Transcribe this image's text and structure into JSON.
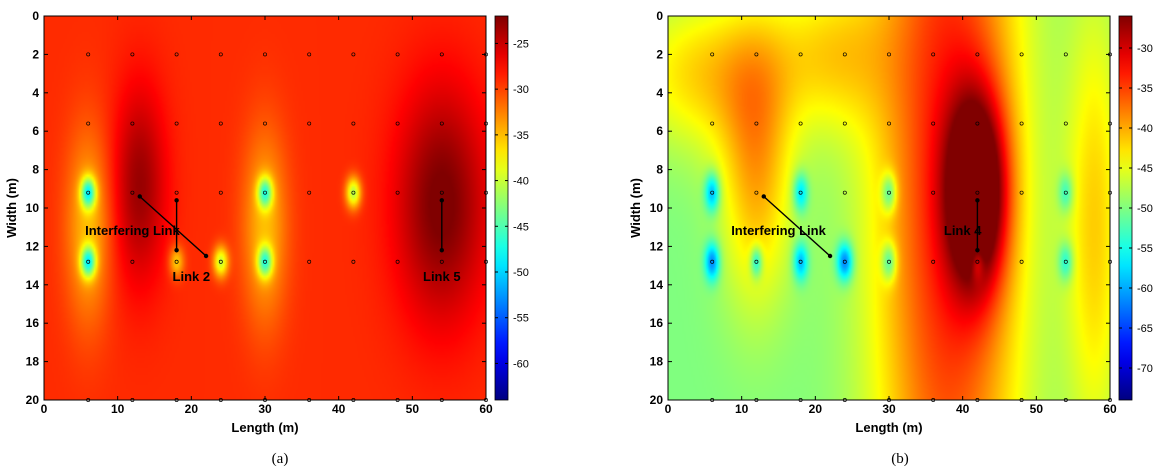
{
  "chart_data": [
    {
      "type": "heatmap",
      "panel_label": "(a)",
      "xlabel": "Length (m)",
      "ylabel": "Width (m)",
      "xlim": [
        0,
        60
      ],
      "ylim": [
        0,
        20
      ],
      "y_axis_inverted": true,
      "x_ticks": [
        0,
        10,
        20,
        30,
        40,
        50,
        60
      ],
      "y_ticks": [
        0,
        2,
        4,
        6,
        8,
        10,
        12,
        14,
        16,
        18,
        20
      ],
      "colorbar": {
        "colormap": "jet",
        "range": [
          -64,
          -22
        ],
        "ticks": [
          -25,
          -30,
          -35,
          -40,
          -45,
          -50,
          -55,
          -60
        ]
      },
      "base_value": -29,
      "sensor_grid": {
        "x": [
          6,
          12,
          18,
          24,
          30,
          36,
          42,
          48,
          54,
          60
        ],
        "y": [
          2,
          5.6,
          9.2,
          12.8,
          20
        ]
      },
      "field_features": [
        {
          "x": 13,
          "y": 8.8,
          "value": -23,
          "spread_x": 3.5,
          "spread_y": 5
        },
        {
          "x": 54,
          "y": 9.8,
          "value": -21.5,
          "spread_x": 6,
          "spread_y": 6
        },
        {
          "x": 6,
          "y": 9.2,
          "value": -44,
          "spread_x": 1,
          "spread_y": 0.8
        },
        {
          "x": 6,
          "y": 12.8,
          "value": -44,
          "spread_x": 1,
          "spread_y": 0.8
        },
        {
          "x": 30,
          "y": 9.2,
          "value": -42,
          "spread_x": 1,
          "spread_y": 0.8
        },
        {
          "x": 30,
          "y": 12.8,
          "value": -42,
          "spread_x": 1,
          "spread_y": 0.8
        },
        {
          "x": 42,
          "y": 9.2,
          "value": -41,
          "spread_x": 1,
          "spread_y": 0.8
        },
        {
          "x": 24,
          "y": 12.8,
          "value": -40,
          "spread_x": 1,
          "spread_y": 0.8
        },
        {
          "x": 18,
          "y": 12.8,
          "value": -36,
          "spread_x": 1,
          "spread_y": 0.8
        },
        {
          "x": 6,
          "y": 11,
          "value": -35,
          "spread_x": 3,
          "spread_y": 5
        },
        {
          "x": 30,
          "y": 11,
          "value": -35,
          "spread_x": 3,
          "spread_y": 5
        }
      ],
      "links": [
        {
          "label": "Interfering Link",
          "from": [
            13,
            9.4
          ],
          "to": [
            22,
            12.5
          ],
          "label_at": [
            12,
            11.2
          ],
          "label_anchor": "middle"
        },
        {
          "label": "Link 2",
          "from": [
            18,
            9.6
          ],
          "to": [
            18,
            12.2
          ],
          "label_at": [
            20,
            13.6
          ],
          "label_anchor": "middle"
        },
        {
          "label": "Link 5",
          "from": [
            54,
            9.6
          ],
          "to": [
            54,
            12.2
          ],
          "label_at": [
            54,
            13.6
          ],
          "label_anchor": "middle"
        }
      ]
    },
    {
      "type": "heatmap",
      "panel_label": "(b)",
      "xlabel": "Length (m)",
      "ylabel": "Width (m)",
      "xlim": [
        0,
        60
      ],
      "ylim": [
        0,
        20
      ],
      "y_axis_inverted": true,
      "x_ticks": [
        0,
        10,
        20,
        30,
        40,
        50,
        60
      ],
      "y_ticks": [
        0,
        2,
        4,
        6,
        8,
        10,
        12,
        14,
        16,
        18,
        20
      ],
      "colorbar": {
        "colormap": "jet",
        "range": [
          -74,
          -26
        ],
        "ticks": [
          -30,
          -35,
          -40,
          -45,
          -50,
          -55,
          -60,
          -65,
          -70
        ]
      },
      "base_value": -50,
      "sensor_grid": {
        "x": [
          6,
          12,
          18,
          24,
          30,
          36,
          42,
          48,
          54,
          60
        ],
        "y": [
          2,
          5.6,
          9.2,
          12.8,
          20
        ]
      },
      "field_features": [
        {
          "x": 38,
          "y": 8,
          "value": -33,
          "spread_x": 10,
          "spread_y": 28
        },
        {
          "x": 42,
          "y": 9.2,
          "value": -27,
          "spread_x": 4,
          "spread_y": 5
        },
        {
          "x": 12,
          "y": 8,
          "value": -40,
          "spread_x": 5,
          "spread_y": 7
        },
        {
          "x": 5,
          "y": 3,
          "value": -42,
          "spread_x": 10,
          "spread_y": 4
        },
        {
          "x": 22,
          "y": 2,
          "value": -43,
          "spread_x": 8,
          "spread_y": 4
        },
        {
          "x": 58,
          "y": 11,
          "value": -42,
          "spread_x": 4,
          "spread_y": 12
        },
        {
          "x": 6,
          "y": 9.2,
          "value": -62,
          "spread_x": 1,
          "spread_y": 1
        },
        {
          "x": 6,
          "y": 12.8,
          "value": -63,
          "spread_x": 1,
          "spread_y": 1
        },
        {
          "x": 12,
          "y": 12.8,
          "value": -60,
          "spread_x": 0.8,
          "spread_y": 0.8
        },
        {
          "x": 18,
          "y": 9.2,
          "value": -60,
          "spread_x": 1,
          "spread_y": 1
        },
        {
          "x": 18,
          "y": 12.8,
          "value": -61,
          "spread_x": 1,
          "spread_y": 1
        },
        {
          "x": 24,
          "y": 12.8,
          "value": -64,
          "spread_x": 1.1,
          "spread_y": 1
        },
        {
          "x": 30,
          "y": 9.2,
          "value": -60,
          "spread_x": 1,
          "spread_y": 1
        },
        {
          "x": 30,
          "y": 12.8,
          "value": -60,
          "spread_x": 1,
          "spread_y": 1
        },
        {
          "x": 42,
          "y": 12.8,
          "value": -57,
          "spread_x": 0.9,
          "spread_y": 1
        },
        {
          "x": 54,
          "y": 9.2,
          "value": -57,
          "spread_x": 1,
          "spread_y": 1
        },
        {
          "x": 54,
          "y": 12.8,
          "value": -58,
          "spread_x": 1,
          "spread_y": 1
        }
      ],
      "links": [
        {
          "label": "Interfering Link",
          "from": [
            13,
            9.4
          ],
          "to": [
            22,
            12.5
          ],
          "label_at": [
            15,
            11.2
          ],
          "label_anchor": "middle"
        },
        {
          "label": "Link 4",
          "from": [
            42,
            9.6
          ],
          "to": [
            42,
            12.2
          ],
          "label_at": [
            40,
            11.2
          ],
          "label_anchor": "middle"
        }
      ]
    }
  ]
}
